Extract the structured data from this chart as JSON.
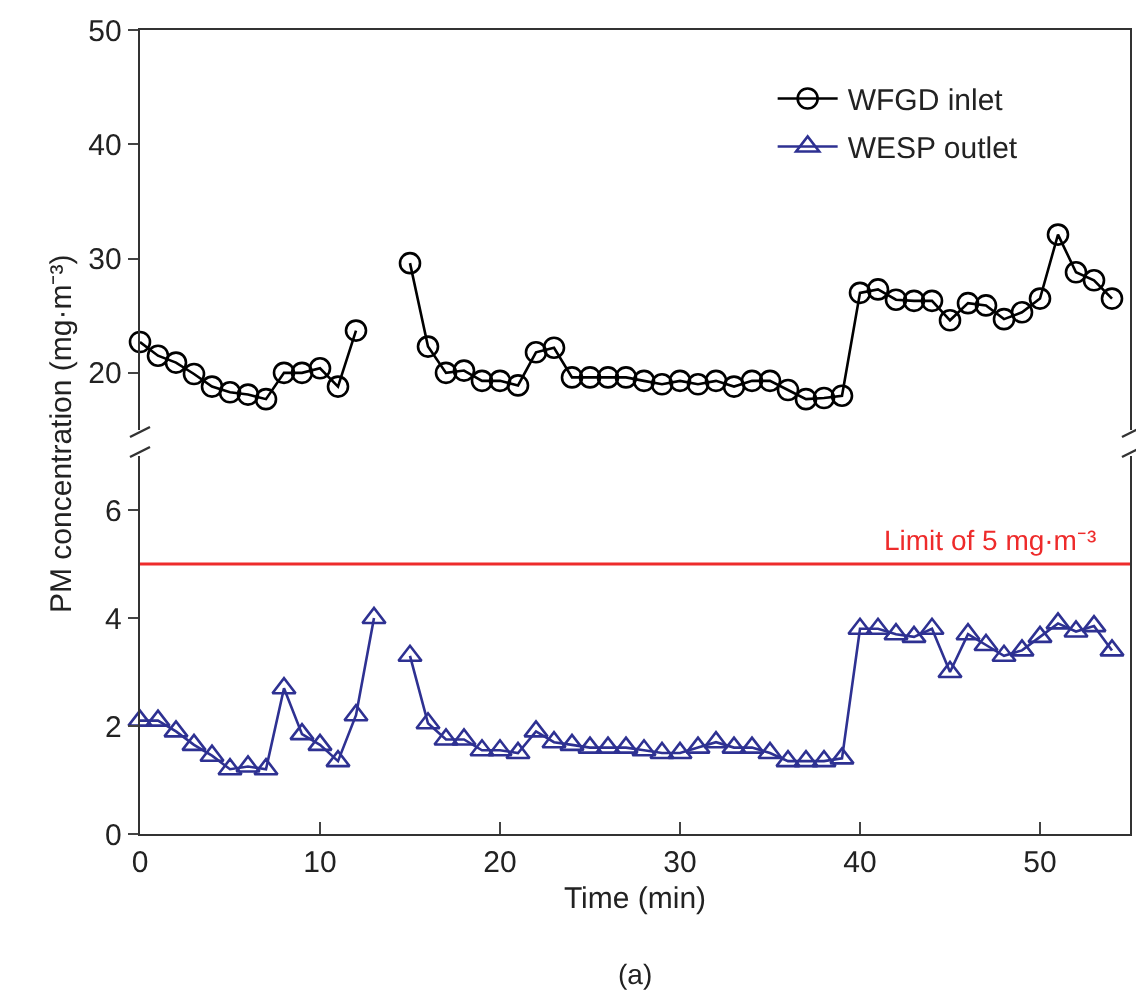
{
  "chart_data": [
    {
      "type": "line",
      "ylabel": "PM concentration (mg·m⁻³)",
      "x": [
        0,
        1,
        2,
        3,
        4,
        5,
        6,
        7,
        8,
        9,
        10,
        11,
        12,
        13,
        14,
        15,
        16,
        17,
        18,
        19,
        20,
        21,
        22,
        23,
        24,
        25,
        26,
        27,
        28,
        29,
        30,
        31,
        32,
        33,
        34,
        35,
        36,
        37,
        38,
        39,
        40,
        41,
        42,
        43,
        44,
        45,
        46,
        47,
        48,
        49,
        50,
        51,
        52,
        53,
        54
      ],
      "series": [
        {
          "name": "WFGD inlet",
          "color": "#000000",
          "marker": "circle",
          "values": [
            22.7,
            21.5,
            20.9,
            19.9,
            18.8,
            18.3,
            18.1,
            17.7,
            20,
            20,
            20.4,
            18.8,
            23.7,
            null,
            null,
            29.6,
            22.3,
            20,
            20.2,
            19.3,
            19.3,
            18.9,
            21.8,
            22.2,
            19.6,
            19.6,
            19.6,
            19.6,
            19.3,
            19,
            19.3,
            19,
            19.3,
            18.8,
            19.3,
            19.3,
            18.5,
            17.7,
            17.8,
            18,
            27,
            27.3,
            26.4,
            26.3,
            26.3,
            24.6,
            26.1,
            25.9,
            24.7,
            25.3,
            26.5,
            32.1,
            28.8,
            28.1,
            26.5
          ]
        }
      ],
      "xlim": [
        0,
        55
      ],
      "ylim": [
        15,
        50
      ],
      "yticks": [
        20,
        30,
        40,
        50
      ],
      "tick_labels": "y",
      "grid": false,
      "legend": "top right",
      "line_style": "solid"
    },
    {
      "type": "line",
      "xlabel": "Time (min)",
      "annotations": [
        "(a)"
      ],
      "x": [
        0,
        1,
        2,
        3,
        4,
        5,
        6,
        7,
        8,
        9,
        10,
        11,
        12,
        13,
        14,
        15,
        16,
        17,
        18,
        19,
        20,
        21,
        22,
        23,
        24,
        25,
        26,
        27,
        28,
        29,
        30,
        31,
        32,
        33,
        34,
        35,
        36,
        37,
        38,
        39,
        40,
        41,
        42,
        43,
        44,
        45,
        46,
        47,
        48,
        49,
        50,
        51,
        52,
        53,
        54
      ],
      "series": [
        {
          "name": "WESP outlet",
          "color": "#2e3192",
          "marker": "triangle",
          "values": [
            2.1,
            2.1,
            1.9,
            1.65,
            1.45,
            1.2,
            1.25,
            1.2,
            2.7,
            1.85,
            1.65,
            1.35,
            2.2,
            4,
            null,
            3.3,
            2.05,
            1.75,
            1.75,
            1.55,
            1.55,
            1.5,
            1.9,
            1.7,
            1.65,
            1.6,
            1.6,
            1.6,
            1.55,
            1.5,
            1.5,
            1.6,
            1.7,
            1.6,
            1.6,
            1.5,
            1.35,
            1.35,
            1.35,
            1.4,
            3.8,
            3.8,
            3.7,
            3.65,
            3.8,
            3,
            3.7,
            3.5,
            3.3,
            3.4,
            3.65,
            3.9,
            3.75,
            3.85,
            3.4
          ]
        }
      ],
      "ref_lines": [
        {
          "axis": "y",
          "value": 5,
          "label": "Limit of 5 mg·m⁻³",
          "color": "#ee2b2b"
        }
      ],
      "xlim": [
        0,
        55
      ],
      "xticks": [
        0,
        10,
        20,
        30,
        40,
        50
      ],
      "ylim": [
        0,
        7
      ],
      "yticks": [
        0,
        2,
        4,
        6
      ],
      "grid": false,
      "legend": "top right",
      "line_style": "solid"
    }
  ]
}
